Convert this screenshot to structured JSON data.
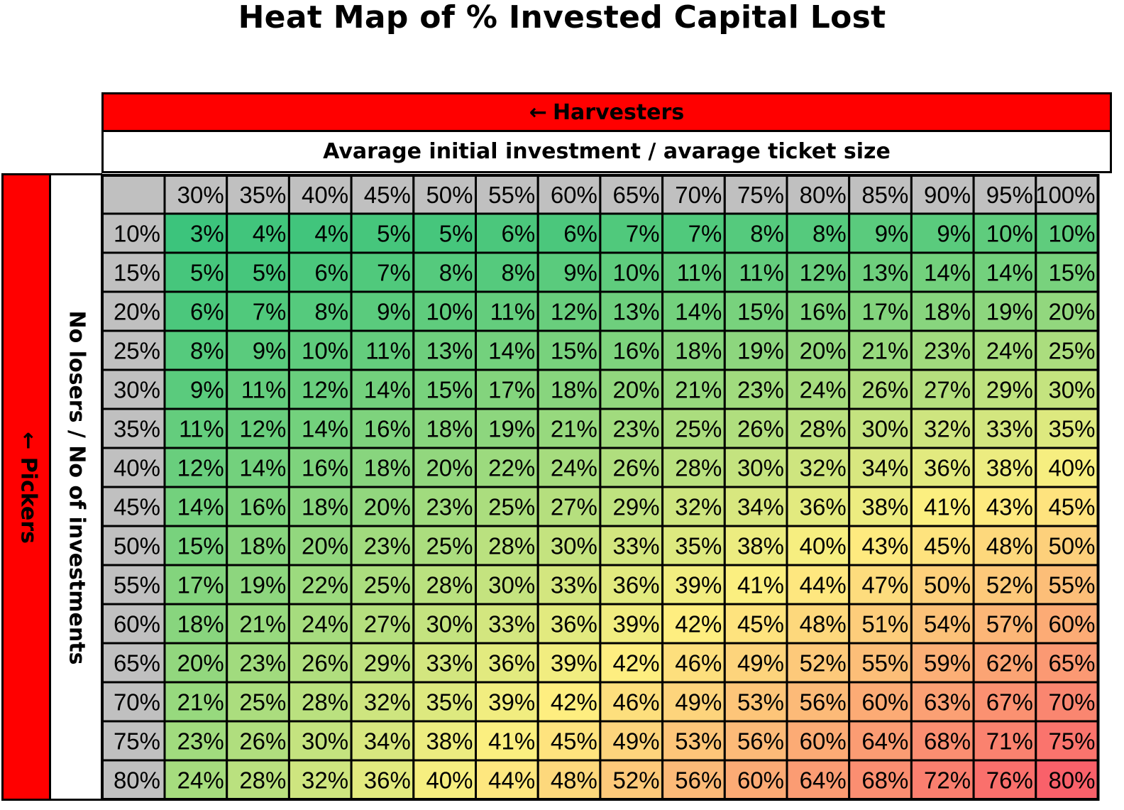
{
  "chart_data": {
    "type": "heatmap",
    "title": "Heat Map of % Invested Capital Lost",
    "top_banner": "Harvesters",
    "side_banner": "Pickers",
    "xlabel": "Avarage initial investment / avarage ticket size",
    "ylabel": "No losers / No of investments",
    "x_categories": [
      "30%",
      "35%",
      "40%",
      "45%",
      "50%",
      "55%",
      "60%",
      "65%",
      "70%",
      "75%",
      "80%",
      "85%",
      "90%",
      "95%",
      "100%"
    ],
    "y_categories": [
      "10%",
      "15%",
      "20%",
      "25%",
      "30%",
      "35%",
      "40%",
      "45%",
      "50%",
      "55%",
      "60%",
      "65%",
      "70%",
      "75%",
      "80%"
    ],
    "values": [
      [
        "3%",
        "4%",
        "4%",
        "5%",
        "5%",
        "6%",
        "6%",
        "7%",
        "7%",
        "8%",
        "8%",
        "9%",
        "9%",
        "10%",
        "10%"
      ],
      [
        "5%",
        "5%",
        "6%",
        "7%",
        "8%",
        "8%",
        "9%",
        "10%",
        "11%",
        "11%",
        "12%",
        "13%",
        "14%",
        "14%",
        "15%"
      ],
      [
        "6%",
        "7%",
        "8%",
        "9%",
        "10%",
        "11%",
        "12%",
        "13%",
        "14%",
        "15%",
        "16%",
        "17%",
        "18%",
        "19%",
        "20%"
      ],
      [
        "8%",
        "9%",
        "10%",
        "11%",
        "13%",
        "14%",
        "15%",
        "16%",
        "18%",
        "19%",
        "20%",
        "21%",
        "23%",
        "24%",
        "25%"
      ],
      [
        "9%",
        "11%",
        "12%",
        "14%",
        "15%",
        "17%",
        "18%",
        "20%",
        "21%",
        "23%",
        "24%",
        "26%",
        "27%",
        "29%",
        "30%"
      ],
      [
        "11%",
        "12%",
        "14%",
        "16%",
        "18%",
        "19%",
        "21%",
        "23%",
        "25%",
        "26%",
        "28%",
        "30%",
        "32%",
        "33%",
        "35%"
      ],
      [
        "12%",
        "14%",
        "16%",
        "18%",
        "20%",
        "22%",
        "24%",
        "26%",
        "28%",
        "30%",
        "32%",
        "34%",
        "36%",
        "38%",
        "40%"
      ],
      [
        "14%",
        "16%",
        "18%",
        "20%",
        "23%",
        "25%",
        "27%",
        "29%",
        "32%",
        "34%",
        "36%",
        "38%",
        "41%",
        "43%",
        "45%"
      ],
      [
        "15%",
        "18%",
        "20%",
        "23%",
        "25%",
        "28%",
        "30%",
        "33%",
        "35%",
        "38%",
        "40%",
        "43%",
        "45%",
        "48%",
        "50%"
      ],
      [
        "17%",
        "19%",
        "22%",
        "25%",
        "28%",
        "30%",
        "33%",
        "36%",
        "39%",
        "41%",
        "44%",
        "47%",
        "50%",
        "52%",
        "55%"
      ],
      [
        "18%",
        "21%",
        "24%",
        "27%",
        "30%",
        "33%",
        "36%",
        "39%",
        "42%",
        "45%",
        "48%",
        "51%",
        "54%",
        "57%",
        "60%"
      ],
      [
        "20%",
        "23%",
        "26%",
        "29%",
        "33%",
        "36%",
        "39%",
        "42%",
        "46%",
        "49%",
        "52%",
        "55%",
        "59%",
        "62%",
        "65%"
      ],
      [
        "21%",
        "25%",
        "28%",
        "32%",
        "35%",
        "39%",
        "42%",
        "46%",
        "49%",
        "53%",
        "56%",
        "60%",
        "63%",
        "67%",
        "70%"
      ],
      [
        "23%",
        "26%",
        "30%",
        "34%",
        "38%",
        "41%",
        "45%",
        "49%",
        "53%",
        "56%",
        "60%",
        "64%",
        "68%",
        "71%",
        "75%"
      ],
      [
        "24%",
        "28%",
        "32%",
        "36%",
        "40%",
        "44%",
        "48%",
        "52%",
        "56%",
        "60%",
        "64%",
        "68%",
        "72%",
        "76%",
        "80%"
      ]
    ],
    "color_scale": {
      "low": "#3cc47c",
      "mid": "#fef080",
      "high": "#f9616a"
    },
    "header_fill": "#c0c0c0",
    "banner_fill": "#ff0000"
  }
}
